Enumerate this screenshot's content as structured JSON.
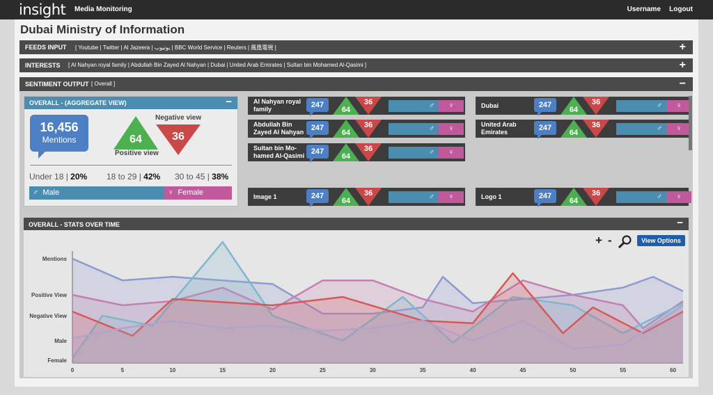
{
  "topbar": {
    "logo": "insight",
    "app_name": "Media Monitoring",
    "username": "Username",
    "logout": "Logout"
  },
  "page_title": "Dubai Ministry of Information",
  "feeds": {
    "title": "FEEDS INPUT",
    "list": "[ Youtube | Twitter | Al Jazeera | يوتيوب | BBC World Service | Reuters | 鳳凰電視 ]"
  },
  "interests": {
    "title": "INTERESTS",
    "list": "[ Al Nahyan royal family | Abdullah Bin Zayed Al Nahyan  | Dubai | United Arab Emirates | Sultan bin Mohamed Al-Qasimi ]"
  },
  "sentiment": {
    "title": "SENTIMENT OUTPUT",
    "scope": "[ Overall ]"
  },
  "overall": {
    "title": "OVERALL - (AGGREGATE VIEW)",
    "mentions": "16,456",
    "mentions_label": "Mentions",
    "positive": "64",
    "positive_label": "Positive view",
    "negative": "36",
    "negative_label": "Negative view",
    "ages": [
      {
        "label": "Under 18 | ",
        "value": "20%"
      },
      {
        "label": "18 to 29 | ",
        "value": "42%"
      },
      {
        "label": "30 to 45 | ",
        "value": "38%"
      }
    ],
    "male_label": "Male",
    "female_label": "Female",
    "male_symbol": "♂",
    "female_symbol": "♀"
  },
  "entities": [
    {
      "label": "Al Nahyan royal family",
      "mentions": "247",
      "positive": "64",
      "negative": "36"
    },
    {
      "label": "Abdullah Bin Zayed Al Nahyan",
      "mentions": "247",
      "positive": "64",
      "negative": "36"
    },
    {
      "label": "Sultan bin Mo-hamed Al-Qasimi",
      "mentions": "247",
      "positive": "64",
      "negative": "36"
    },
    {
      "label": "Dubai",
      "mentions": "247",
      "positive": "64",
      "negative": "36"
    },
    {
      "label": "United Arab Emirates",
      "mentions": "247",
      "positive": "64",
      "negative": "36"
    },
    {
      "label": "Image 1",
      "mentions": "247",
      "positive": "64",
      "negative": "36"
    },
    {
      "label": "Logo 1",
      "mentions": "247",
      "positive": "64",
      "negative": "36"
    }
  ],
  "stats": {
    "title": "OVERALL - STATS OVER TIME",
    "plus": "+",
    "minus": "-",
    "view_options": "View Options"
  },
  "colors": {
    "positive": "#4caf50",
    "negative": "#c94848",
    "mentions": "#4d7fc4",
    "male": "#4a8db0",
    "female": "#c05a9c"
  },
  "chart_data": {
    "type": "area",
    "y_categories": [
      "Female",
      "Male",
      "Negative View",
      "Positive View",
      "Mentions"
    ],
    "xlim": [
      0,
      61
    ],
    "x_ticks": [
      0,
      5,
      10,
      15,
      20,
      25,
      30,
      35,
      40,
      45,
      50,
      55,
      60
    ],
    "grid": false,
    "series": [
      {
        "color": "#8e9bd0",
        "x": [
          0,
          5,
          10,
          15,
          20,
          25,
          30,
          35,
          37,
          40,
          45,
          50,
          55,
          58,
          61
        ],
        "y": [
          4.0,
          3.4,
          3.5,
          3.4,
          3.3,
          2.1,
          2.1,
          2.4,
          3.5,
          2.6,
          2.8,
          3.0,
          3.2,
          3.5,
          3.1
        ]
      },
      {
        "color": "#c57fb3",
        "x": [
          0,
          5,
          10,
          15,
          20,
          25,
          30,
          35,
          40,
          45,
          50,
          55,
          57,
          61
        ],
        "y": [
          3.0,
          2.5,
          2.7,
          3.2,
          2.3,
          3.4,
          3.4,
          2.8,
          2.2,
          3.4,
          3.0,
          2.5,
          1.5,
          2.7
        ]
      },
      {
        "color": "#7fb7cf",
        "x": [
          0,
          3,
          8,
          15,
          20,
          27,
          33,
          38,
          44,
          50,
          55,
          61
        ],
        "y": [
          0.1,
          2.0,
          1.6,
          4.6,
          2.0,
          1.0,
          2.9,
          0.9,
          2.9,
          2.5,
          1.3,
          2.6
        ]
      },
      {
        "color": "#d45a5a",
        "x": [
          0,
          6,
          10,
          20,
          27,
          35,
          40,
          44,
          49,
          52,
          57,
          61
        ],
        "y": [
          2.2,
          1.2,
          2.8,
          2.5,
          2.9,
          1.8,
          1.7,
          3.6,
          1.3,
          2.4,
          1.3,
          2.2
        ]
      },
      {
        "color": "#b2a3c8",
        "x": [
          0,
          5,
          10,
          15,
          20,
          25,
          30,
          35,
          40,
          45,
          50,
          55,
          61
        ],
        "y": [
          1.1,
          1.5,
          1.8,
          1.5,
          1.6,
          1.4,
          1.5,
          1.8,
          1.0,
          1.8,
          0.6,
          0.8,
          2.5
        ]
      }
    ]
  }
}
